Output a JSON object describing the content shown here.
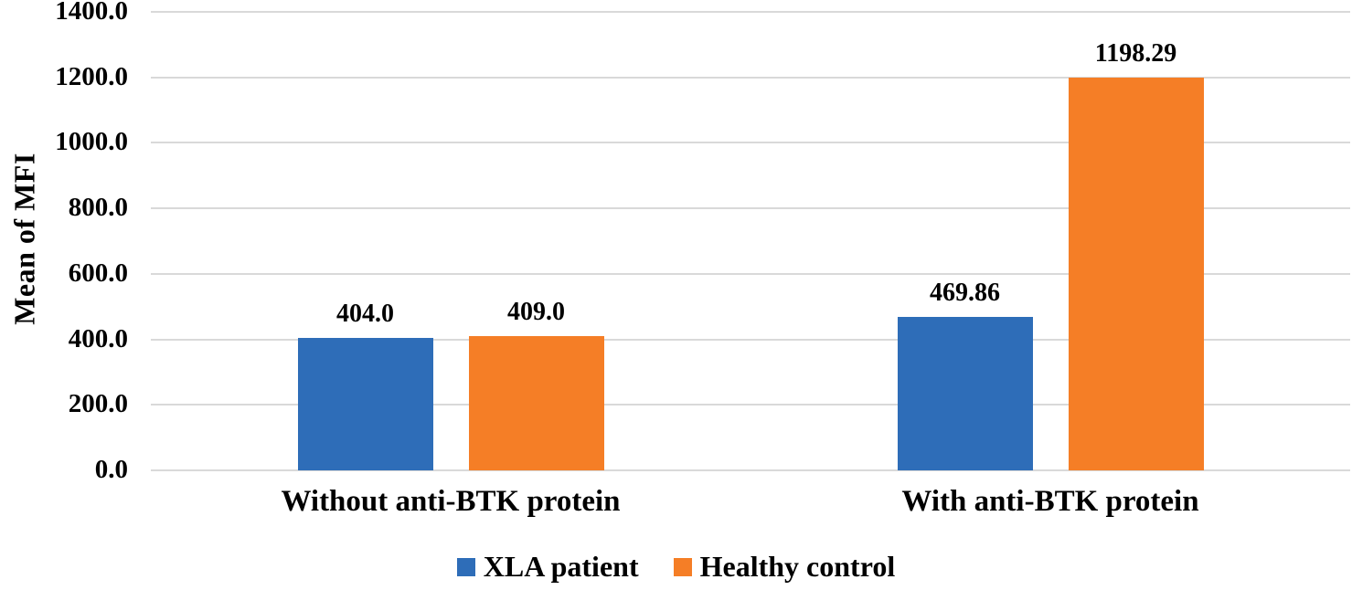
{
  "chart_data": {
    "type": "bar",
    "title": "",
    "xlabel": "",
    "ylabel": "Mean of MFI",
    "categories": [
      "Without anti-BTK protein",
      "With anti-BTK protein"
    ],
    "series": [
      {
        "name": "XLA patient",
        "color": "#2E6DB8",
        "values": [
          404.0,
          469.86
        ],
        "value_labels": [
          "404.0",
          "469.86"
        ]
      },
      {
        "name": "Healthy control",
        "color": "#F57E26",
        "values": [
          409.0,
          1198.29
        ],
        "value_labels": [
          "409.0",
          "1198.29"
        ]
      }
    ],
    "y_axis": {
      "min": 0,
      "max": 1400,
      "step": 200,
      "tick_labels": [
        "0.0",
        "200.0",
        "400.0",
        "600.0",
        "800.0",
        "1000.0",
        "1200.0",
        "1400.0"
      ]
    },
    "grid": true,
    "legend_position": "bottom",
    "colors": {
      "gridline": "#D9D9D9",
      "text": "#000000",
      "background": "#FFFFFF"
    }
  }
}
